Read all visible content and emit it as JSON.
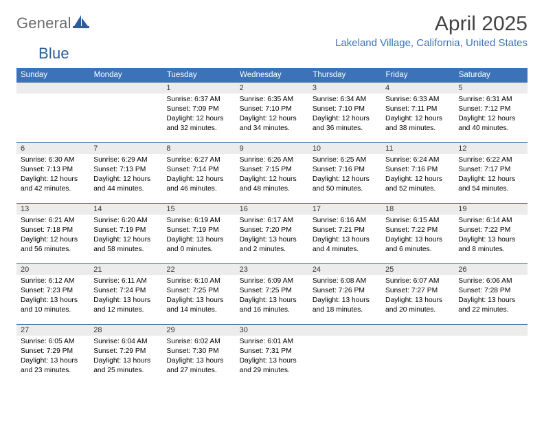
{
  "brand": {
    "name_part1": "General",
    "name_part2": "Blue"
  },
  "title": "April 2025",
  "location": "Lakeland Village, California, United States",
  "colors": {
    "header_bg": "#3c72b8",
    "header_text": "#ffffff",
    "row_border": "#2e5d99",
    "daynum_bg": "#ececec",
    "location_text": "#3c72b8",
    "logo_gray": "#6a6a6a",
    "logo_blue": "#2e5d99"
  },
  "typography": {
    "title_fontsize": 30,
    "location_fontsize": 15,
    "dayheader_fontsize": 11.5,
    "daynum_fontsize": 11,
    "body_fontsize": 10.3
  },
  "day_headers": [
    "Sunday",
    "Monday",
    "Tuesday",
    "Wednesday",
    "Thursday",
    "Friday",
    "Saturday"
  ],
  "weeks": [
    [
      null,
      null,
      {
        "n": "1",
        "sunrise": "Sunrise: 6:37 AM",
        "sunset": "Sunset: 7:09 PM",
        "daylight": "Daylight: 12 hours and 32 minutes."
      },
      {
        "n": "2",
        "sunrise": "Sunrise: 6:35 AM",
        "sunset": "Sunset: 7:10 PM",
        "daylight": "Daylight: 12 hours and 34 minutes."
      },
      {
        "n": "3",
        "sunrise": "Sunrise: 6:34 AM",
        "sunset": "Sunset: 7:10 PM",
        "daylight": "Daylight: 12 hours and 36 minutes."
      },
      {
        "n": "4",
        "sunrise": "Sunrise: 6:33 AM",
        "sunset": "Sunset: 7:11 PM",
        "daylight": "Daylight: 12 hours and 38 minutes."
      },
      {
        "n": "5",
        "sunrise": "Sunrise: 6:31 AM",
        "sunset": "Sunset: 7:12 PM",
        "daylight": "Daylight: 12 hours and 40 minutes."
      }
    ],
    [
      {
        "n": "6",
        "sunrise": "Sunrise: 6:30 AM",
        "sunset": "Sunset: 7:13 PM",
        "daylight": "Daylight: 12 hours and 42 minutes."
      },
      {
        "n": "7",
        "sunrise": "Sunrise: 6:29 AM",
        "sunset": "Sunset: 7:13 PM",
        "daylight": "Daylight: 12 hours and 44 minutes."
      },
      {
        "n": "8",
        "sunrise": "Sunrise: 6:27 AM",
        "sunset": "Sunset: 7:14 PM",
        "daylight": "Daylight: 12 hours and 46 minutes."
      },
      {
        "n": "9",
        "sunrise": "Sunrise: 6:26 AM",
        "sunset": "Sunset: 7:15 PM",
        "daylight": "Daylight: 12 hours and 48 minutes."
      },
      {
        "n": "10",
        "sunrise": "Sunrise: 6:25 AM",
        "sunset": "Sunset: 7:16 PM",
        "daylight": "Daylight: 12 hours and 50 minutes."
      },
      {
        "n": "11",
        "sunrise": "Sunrise: 6:24 AM",
        "sunset": "Sunset: 7:16 PM",
        "daylight": "Daylight: 12 hours and 52 minutes."
      },
      {
        "n": "12",
        "sunrise": "Sunrise: 6:22 AM",
        "sunset": "Sunset: 7:17 PM",
        "daylight": "Daylight: 12 hours and 54 minutes."
      }
    ],
    [
      {
        "n": "13",
        "sunrise": "Sunrise: 6:21 AM",
        "sunset": "Sunset: 7:18 PM",
        "daylight": "Daylight: 12 hours and 56 minutes."
      },
      {
        "n": "14",
        "sunrise": "Sunrise: 6:20 AM",
        "sunset": "Sunset: 7:19 PM",
        "daylight": "Daylight: 12 hours and 58 minutes."
      },
      {
        "n": "15",
        "sunrise": "Sunrise: 6:19 AM",
        "sunset": "Sunset: 7:19 PM",
        "daylight": "Daylight: 13 hours and 0 minutes."
      },
      {
        "n": "16",
        "sunrise": "Sunrise: 6:17 AM",
        "sunset": "Sunset: 7:20 PM",
        "daylight": "Daylight: 13 hours and 2 minutes."
      },
      {
        "n": "17",
        "sunrise": "Sunrise: 6:16 AM",
        "sunset": "Sunset: 7:21 PM",
        "daylight": "Daylight: 13 hours and 4 minutes."
      },
      {
        "n": "18",
        "sunrise": "Sunrise: 6:15 AM",
        "sunset": "Sunset: 7:22 PM",
        "daylight": "Daylight: 13 hours and 6 minutes."
      },
      {
        "n": "19",
        "sunrise": "Sunrise: 6:14 AM",
        "sunset": "Sunset: 7:22 PM",
        "daylight": "Daylight: 13 hours and 8 minutes."
      }
    ],
    [
      {
        "n": "20",
        "sunrise": "Sunrise: 6:12 AM",
        "sunset": "Sunset: 7:23 PM",
        "daylight": "Daylight: 13 hours and 10 minutes."
      },
      {
        "n": "21",
        "sunrise": "Sunrise: 6:11 AM",
        "sunset": "Sunset: 7:24 PM",
        "daylight": "Daylight: 13 hours and 12 minutes."
      },
      {
        "n": "22",
        "sunrise": "Sunrise: 6:10 AM",
        "sunset": "Sunset: 7:25 PM",
        "daylight": "Daylight: 13 hours and 14 minutes."
      },
      {
        "n": "23",
        "sunrise": "Sunrise: 6:09 AM",
        "sunset": "Sunset: 7:25 PM",
        "daylight": "Daylight: 13 hours and 16 minutes."
      },
      {
        "n": "24",
        "sunrise": "Sunrise: 6:08 AM",
        "sunset": "Sunset: 7:26 PM",
        "daylight": "Daylight: 13 hours and 18 minutes."
      },
      {
        "n": "25",
        "sunrise": "Sunrise: 6:07 AM",
        "sunset": "Sunset: 7:27 PM",
        "daylight": "Daylight: 13 hours and 20 minutes."
      },
      {
        "n": "26",
        "sunrise": "Sunrise: 6:06 AM",
        "sunset": "Sunset: 7:28 PM",
        "daylight": "Daylight: 13 hours and 22 minutes."
      }
    ],
    [
      {
        "n": "27",
        "sunrise": "Sunrise: 6:05 AM",
        "sunset": "Sunset: 7:29 PM",
        "daylight": "Daylight: 13 hours and 23 minutes."
      },
      {
        "n": "28",
        "sunrise": "Sunrise: 6:04 AM",
        "sunset": "Sunset: 7:29 PM",
        "daylight": "Daylight: 13 hours and 25 minutes."
      },
      {
        "n": "29",
        "sunrise": "Sunrise: 6:02 AM",
        "sunset": "Sunset: 7:30 PM",
        "daylight": "Daylight: 13 hours and 27 minutes."
      },
      {
        "n": "30",
        "sunrise": "Sunrise: 6:01 AM",
        "sunset": "Sunset: 7:31 PM",
        "daylight": "Daylight: 13 hours and 29 minutes."
      },
      null,
      null,
      null
    ]
  ]
}
